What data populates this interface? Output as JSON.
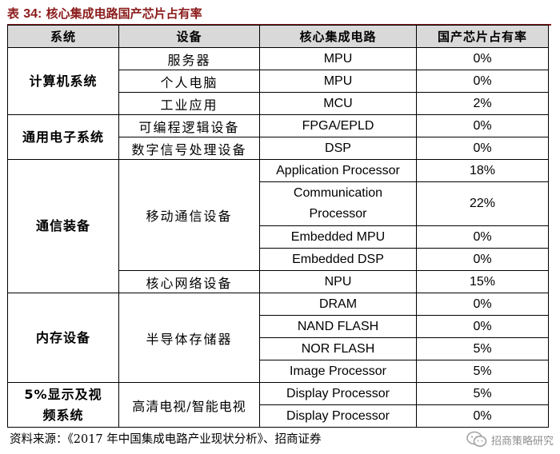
{
  "title": {
    "prefix": "表",
    "number": "34:",
    "text": "核心集成电路国产芯片占有率"
  },
  "table": {
    "headers": [
      "系统",
      "设备",
      "核心集成电路",
      "国产芯片占有率"
    ],
    "systems": [
      "计算机系统",
      "通用电子系统",
      "通信装备",
      "内存设备",
      "5%显示及视频系统"
    ],
    "rows": [
      {
        "device": "服务器",
        "ic": "MPU",
        "share": "0%"
      },
      {
        "device": "个人电脑",
        "ic": "MPU",
        "share": "0%"
      },
      {
        "device": "工业应用",
        "ic": "MCU",
        "share": "2%"
      },
      {
        "device": "可编程逻辑设备",
        "ic": "FPGA/EPLD",
        "share": "0%"
      },
      {
        "device": "数字信号处理设备",
        "ic": "DSP",
        "share": "0%"
      },
      {
        "device": "移动通信设备",
        "ic": "Application Processor",
        "share": "18%"
      },
      {
        "device": "",
        "ic": "Communication Processor",
        "share": "22%"
      },
      {
        "device": "",
        "ic": "Embedded MPU",
        "share": "0%"
      },
      {
        "device": "",
        "ic": "Embedded DSP",
        "share": "0%"
      },
      {
        "device": "核心网络设备",
        "ic": "NPU",
        "share": "15%"
      },
      {
        "device": "半导体存储器",
        "ic": "DRAM",
        "share": "0%"
      },
      {
        "device": "",
        "ic": "NAND FLASH",
        "share": "0%"
      },
      {
        "device": "",
        "ic": "NOR FLASH",
        "share": "5%"
      },
      {
        "device": "",
        "ic": "Image Processor",
        "share": "5%"
      },
      {
        "device": "高清电视/智能电视",
        "ic": "Display Processor",
        "share": "5%"
      },
      {
        "device": "",
        "ic": "Display Processor",
        "share": "0%"
      }
    ]
  },
  "source": "资料来源：《2017 年中国集成电路产业现状分析》、招商证券",
  "watermark": {
    "icon": "wechat-icon",
    "text": "招商策略研究"
  }
}
